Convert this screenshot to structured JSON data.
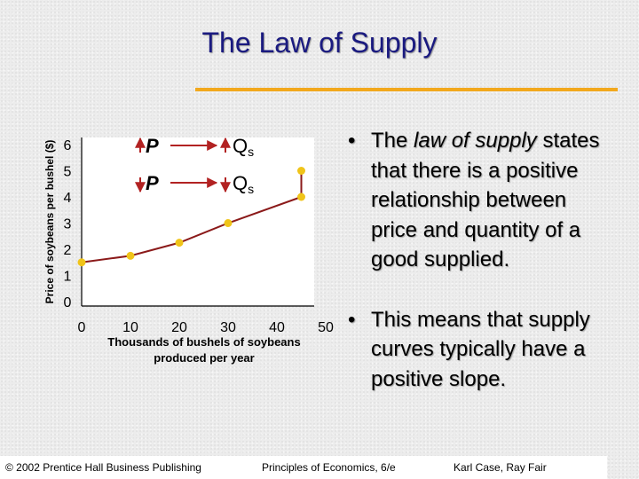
{
  "title": "The Law of Supply",
  "colors": {
    "title": "#1a1a80",
    "accent_rule": "#f2a81d",
    "curve": "#8b1a1a",
    "points": "#f0c419"
  },
  "chart_data": {
    "type": "line",
    "x": [
      0,
      10,
      20,
      30,
      45,
      45
    ],
    "series": [
      {
        "values": [
          1.5,
          1.75,
          2.25,
          3,
          4,
          5
        ]
      }
    ],
    "xticks": [
      "0",
      "10",
      "20",
      "30",
      "40",
      "50"
    ],
    "yticks": [
      "0",
      "1",
      "2",
      "3",
      "4",
      "5",
      "6"
    ],
    "xlabel_lines": [
      "Thousands of bushels of soybeans",
      "produced per year"
    ],
    "ylabel": "Price of soybeans per bushel ($)",
    "xlim": [
      0,
      50
    ],
    "ylim": [
      0,
      6
    ],
    "grid": false,
    "annotations": [
      {
        "cause": "P",
        "effect": "Q",
        "effect_sub": "s",
        "direction": "up"
      },
      {
        "cause": "P",
        "effect": "Q",
        "effect_sub": "s",
        "direction": "down"
      }
    ]
  },
  "bullets": [
    {
      "mark": "•",
      "pre": "The ",
      "emph": "law of supply",
      "post": " states that there is a positive relationship between price and quantity of a good supplied."
    },
    {
      "mark": "•",
      "text": "This means that supply curves typically have a positive slope."
    }
  ],
  "footer": {
    "left": "© 2002 Prentice Hall Business Publishing",
    "middle": "Principles of Economics, 6/e",
    "right": "Karl Case, Ray Fair"
  }
}
